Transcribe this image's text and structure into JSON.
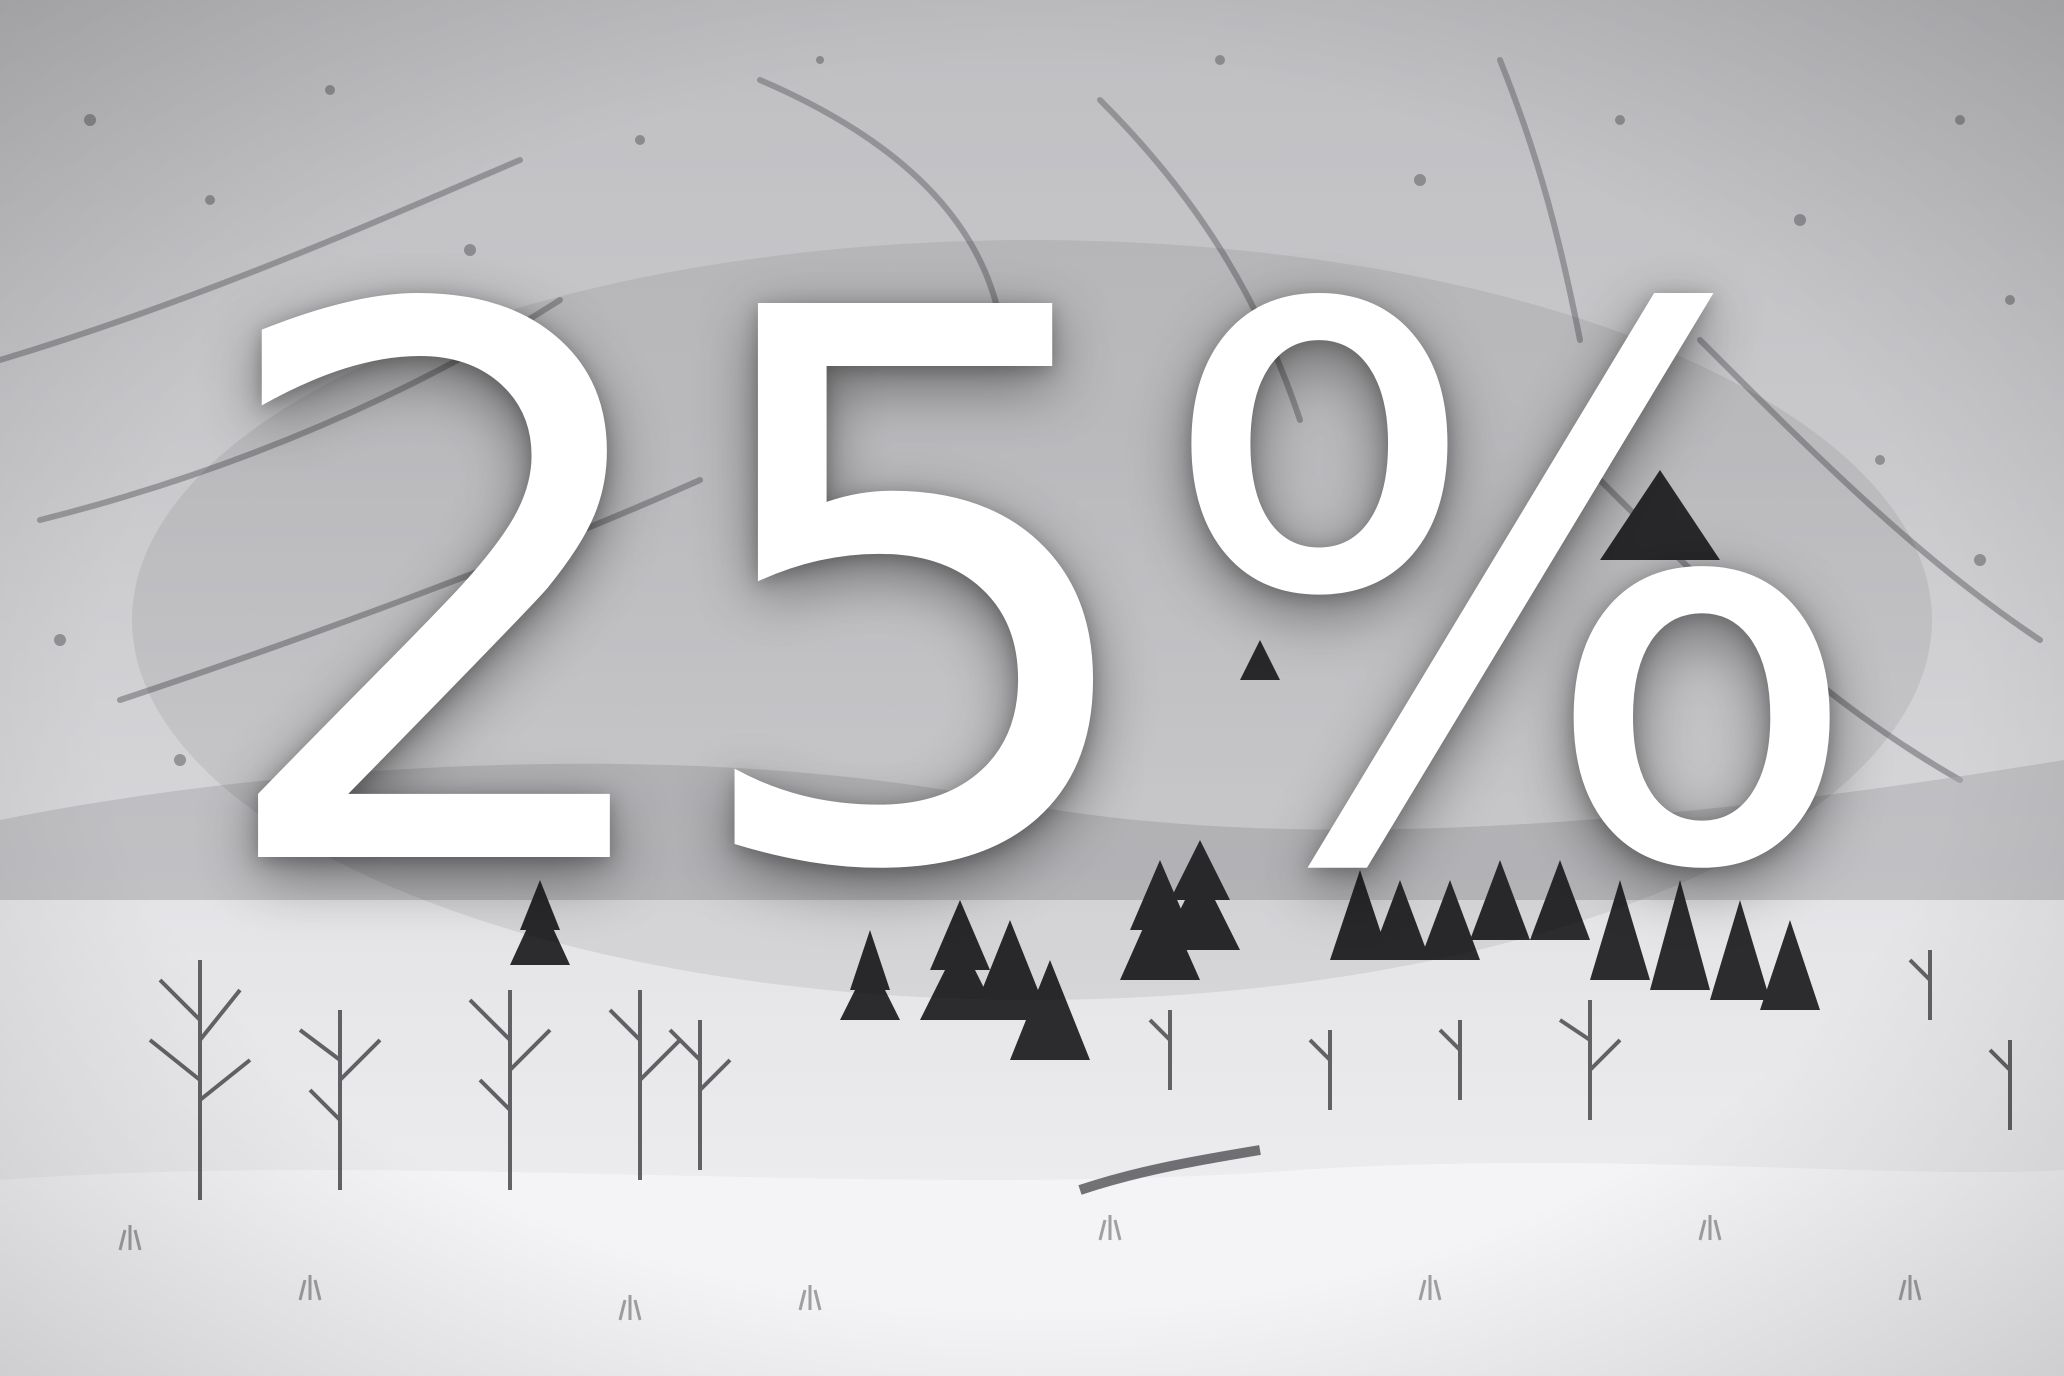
{
  "overlay": {
    "text": "25%",
    "color": "#ffffff"
  },
  "scene": {
    "description_tags": [
      "snow-covered-mountain-slope",
      "conifer-trees",
      "bare-trees",
      "snowy-meadow",
      "small-creek"
    ],
    "palette": {
      "sky_slope": "#c9c9cb",
      "snow_light": "#efeff1",
      "shadow": "#5e5e62",
      "tree_dark": "#2c2c2e"
    }
  }
}
